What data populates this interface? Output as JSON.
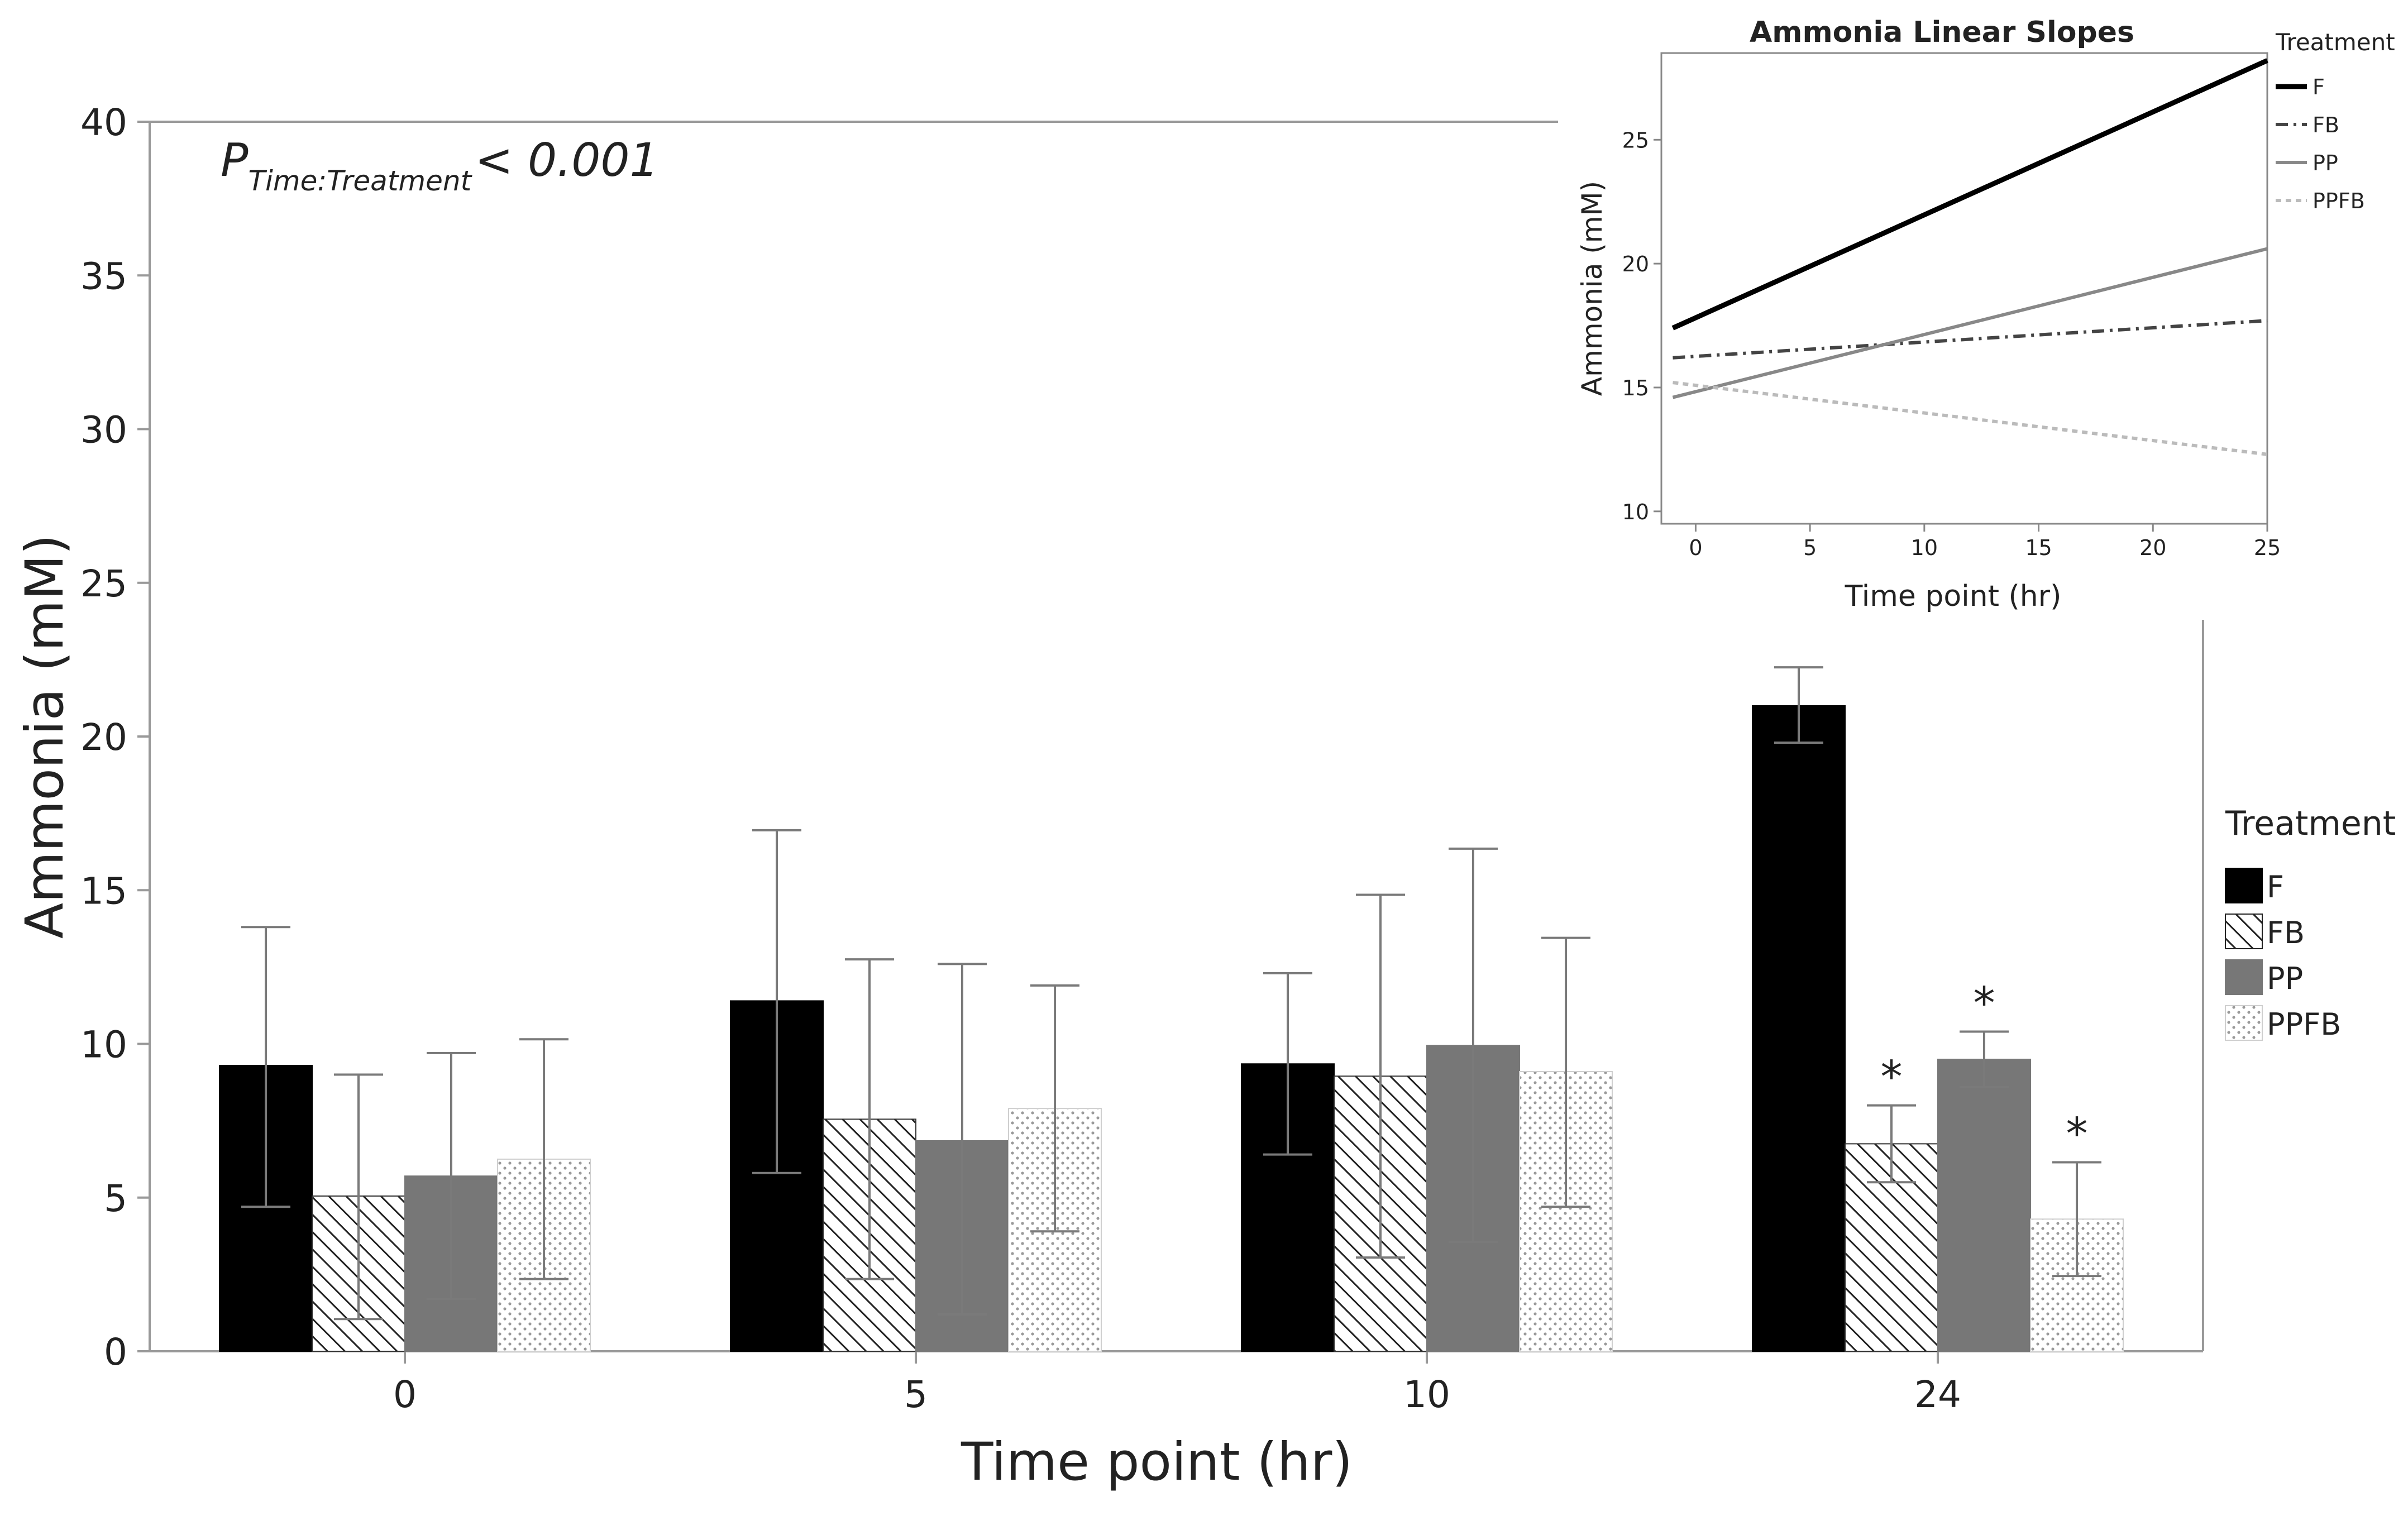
{
  "chart_data": [
    {
      "type": "bar",
      "title": "",
      "xlabel": "Time point (hr)",
      "ylabel": "Ammonia (mM)",
      "ylim": [
        0,
        40
      ],
      "yticks": [
        0,
        5,
        10,
        15,
        20,
        25,
        30,
        35,
        40
      ],
      "categories": [
        "0",
        "5",
        "10",
        "24"
      ],
      "annotation": {
        "p_label": "P",
        "p_subscript": "Time:Treatment",
        "p_value": "< 0.001"
      },
      "legend": {
        "title": "Treatment",
        "placement": "right"
      },
      "significance_marker": "*",
      "series": [
        {
          "name": "F",
          "fill": "solid",
          "color": "#000000",
          "values": [
            9.3,
            11.4,
            9.35,
            21.0
          ],
          "err_low": [
            4.7,
            5.8,
            6.4,
            19.8
          ],
          "err_high": [
            13.8,
            16.95,
            12.3,
            22.25
          ],
          "significant": [
            false,
            false,
            false,
            false
          ]
        },
        {
          "name": "FB",
          "fill": "hatch",
          "color": "#222222",
          "values": [
            5.05,
            7.55,
            8.95,
            6.75
          ],
          "err_low": [
            1.05,
            2.35,
            3.05,
            5.5
          ],
          "err_high": [
            9.0,
            12.75,
            14.85,
            8.0
          ],
          "significant": [
            false,
            false,
            false,
            true
          ]
        },
        {
          "name": "PP",
          "fill": "solid",
          "color": "#777777",
          "values": [
            5.7,
            6.85,
            9.95,
            9.5
          ],
          "err_low": [
            1.7,
            1.2,
            3.55,
            8.6
          ],
          "err_high": [
            9.7,
            12.6,
            16.35,
            10.4
          ],
          "significant": [
            false,
            false,
            false,
            true
          ]
        },
        {
          "name": "PPFB",
          "fill": "dots",
          "color": "#aaaaaa",
          "values": [
            6.25,
            7.9,
            9.1,
            4.3
          ],
          "err_low": [
            2.35,
            3.9,
            4.7,
            2.45
          ],
          "err_high": [
            10.15,
            11.9,
            13.45,
            6.15
          ],
          "significant": [
            false,
            false,
            false,
            true
          ]
        }
      ]
    },
    {
      "type": "line",
      "title": "Ammonia Linear Slopes",
      "xlabel": "Time point (hr)",
      "ylabel": "Ammonia (mM)",
      "xlim": [
        -1.5,
        25
      ],
      "ylim": [
        9.5,
        28.5
      ],
      "xticks": [
        0,
        5,
        10,
        15,
        20,
        25
      ],
      "yticks": [
        10,
        15,
        20,
        25
      ],
      "legend": {
        "title": "Treatment",
        "placement": "right"
      },
      "series": [
        {
          "name": "F",
          "style": "solid",
          "color": "#000000",
          "x": [
            -1,
            25
          ],
          "y": [
            17.4,
            28.2
          ]
        },
        {
          "name": "FB",
          "style": "dash-dot",
          "color": "#444444",
          "x": [
            -1,
            25
          ],
          "y": [
            16.2,
            17.7
          ]
        },
        {
          "name": "PP",
          "style": "solid",
          "color": "#888888",
          "x": [
            -1,
            25
          ],
          "y": [
            14.6,
            20.6
          ]
        },
        {
          "name": "PPFB",
          "style": "dotted",
          "color": "#bbbbbb",
          "x": [
            -1,
            25
          ],
          "y": [
            15.2,
            12.3
          ]
        }
      ]
    }
  ]
}
